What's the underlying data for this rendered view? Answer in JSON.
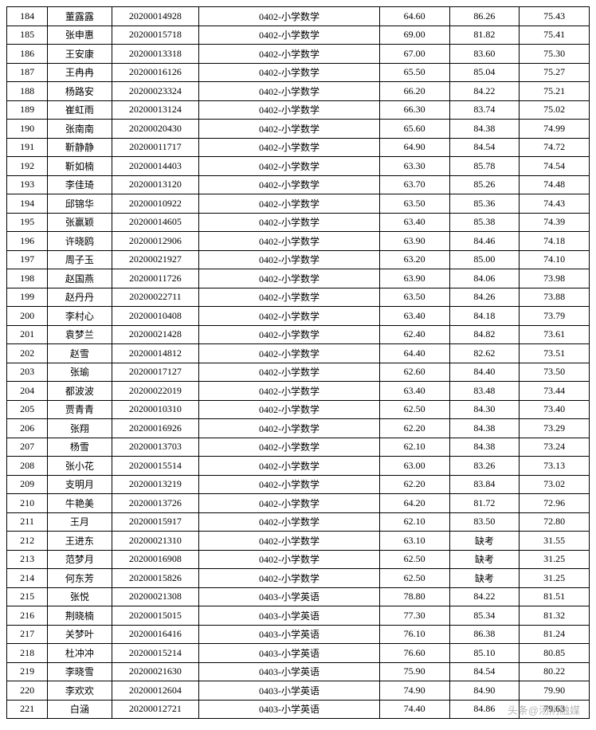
{
  "table": {
    "columns": [
      "index",
      "name",
      "id",
      "subject",
      "score1",
      "score2",
      "score3"
    ],
    "column_classes": [
      "col-index",
      "col-name",
      "col-id",
      "col-subject",
      "col-score1",
      "col-score2",
      "col-score3"
    ],
    "border_color": "#000000",
    "background_color": "#ffffff",
    "text_color": "#000000",
    "font_size": 12,
    "row_height": 23.5,
    "rows": [
      [
        "184",
        "董露露",
        "20200014928",
        "0402-小学数学",
        "64.60",
        "86.26",
        "75.43"
      ],
      [
        "185",
        "张申惠",
        "20200015718",
        "0402-小学数学",
        "69.00",
        "81.82",
        "75.41"
      ],
      [
        "186",
        "王安康",
        "20200013318",
        "0402-小学数学",
        "67.00",
        "83.60",
        "75.30"
      ],
      [
        "187",
        "王冉冉",
        "20200016126",
        "0402-小学数学",
        "65.50",
        "85.04",
        "75.27"
      ],
      [
        "188",
        "杨路安",
        "20200023324",
        "0402-小学数学",
        "66.20",
        "84.22",
        "75.21"
      ],
      [
        "189",
        "崔虹雨",
        "20200013124",
        "0402-小学数学",
        "66.30",
        "83.74",
        "75.02"
      ],
      [
        "190",
        "张南南",
        "20200020430",
        "0402-小学数学",
        "65.60",
        "84.38",
        "74.99"
      ],
      [
        "191",
        "靳静静",
        "20200011717",
        "0402-小学数学",
        "64.90",
        "84.54",
        "74.72"
      ],
      [
        "192",
        "靳如楠",
        "20200014403",
        "0402-小学数学",
        "63.30",
        "85.78",
        "74.54"
      ],
      [
        "193",
        "李佳琦",
        "20200013120",
        "0402-小学数学",
        "63.70",
        "85.26",
        "74.48"
      ],
      [
        "194",
        "邱锦华",
        "20200010922",
        "0402-小学数学",
        "63.50",
        "85.36",
        "74.43"
      ],
      [
        "195",
        "张赢颖",
        "20200014605",
        "0402-小学数学",
        "63.40",
        "85.38",
        "74.39"
      ],
      [
        "196",
        "许晓鸥",
        "20200012906",
        "0402-小学数学",
        "63.90",
        "84.46",
        "74.18"
      ],
      [
        "197",
        "周子玉",
        "20200021927",
        "0402-小学数学",
        "63.20",
        "85.00",
        "74.10"
      ],
      [
        "198",
        "赵国燕",
        "20200011726",
        "0402-小学数学",
        "63.90",
        "84.06",
        "73.98"
      ],
      [
        "199",
        "赵丹丹",
        "20200022711",
        "0402-小学数学",
        "63.50",
        "84.26",
        "73.88"
      ],
      [
        "200",
        "李村心",
        "20200010408",
        "0402-小学数学",
        "63.40",
        "84.18",
        "73.79"
      ],
      [
        "201",
        "袁梦兰",
        "20200021428",
        "0402-小学数学",
        "62.40",
        "84.82",
        "73.61"
      ],
      [
        "202",
        "赵雪",
        "20200014812",
        "0402-小学数学",
        "64.40",
        "82.62",
        "73.51"
      ],
      [
        "203",
        "张瑜",
        "20200017127",
        "0402-小学数学",
        "62.60",
        "84.40",
        "73.50"
      ],
      [
        "204",
        "都波波",
        "20200022019",
        "0402-小学数学",
        "63.40",
        "83.48",
        "73.44"
      ],
      [
        "205",
        "贾青青",
        "20200010310",
        "0402-小学数学",
        "62.50",
        "84.30",
        "73.40"
      ],
      [
        "206",
        "张翔",
        "20200016926",
        "0402-小学数学",
        "62.20",
        "84.38",
        "73.29"
      ],
      [
        "207",
        "杨雪",
        "20200013703",
        "0402-小学数学",
        "62.10",
        "84.38",
        "73.24"
      ],
      [
        "208",
        "张小花",
        "20200015514",
        "0402-小学数学",
        "63.00",
        "83.26",
        "73.13"
      ],
      [
        "209",
        "支明月",
        "20200013219",
        "0402-小学数学",
        "62.20",
        "83.84",
        "73.02"
      ],
      [
        "210",
        "牛艳美",
        "20200013726",
        "0402-小学数学",
        "64.20",
        "81.72",
        "72.96"
      ],
      [
        "211",
        "王月",
        "20200015917",
        "0402-小学数学",
        "62.10",
        "83.50",
        "72.80"
      ],
      [
        "212",
        "王进东",
        "20200021310",
        "0402-小学数学",
        "63.10",
        "缺考",
        "31.55"
      ],
      [
        "213",
        "范梦月",
        "20200016908",
        "0402-小学数学",
        "62.50",
        "缺考",
        "31.25"
      ],
      [
        "214",
        "何东芳",
        "20200015826",
        "0402-小学数学",
        "62.50",
        "缺考",
        "31.25"
      ],
      [
        "215",
        "张悦",
        "20200021308",
        "0403-小学英语",
        "78.80",
        "84.22",
        "81.51"
      ],
      [
        "216",
        "荆晓楠",
        "20200015015",
        "0403-小学英语",
        "77.30",
        "85.34",
        "81.32"
      ],
      [
        "217",
        "关梦叶",
        "20200016416",
        "0403-小学英语",
        "76.10",
        "86.38",
        "81.24"
      ],
      [
        "218",
        "杜冲冲",
        "20200015214",
        "0403-小学英语",
        "76.60",
        "85.10",
        "80.85"
      ],
      [
        "219",
        "李晓雪",
        "20200021630",
        "0403-小学英语",
        "75.90",
        "84.54",
        "80.22"
      ],
      [
        "220",
        "李欢欢",
        "20200012604",
        "0403-小学英语",
        "74.90",
        "84.90",
        "79.90"
      ],
      [
        "221",
        "白涵",
        "20200012721",
        "0403-小学英语",
        "74.40",
        "84.86",
        "79.63"
      ]
    ]
  },
  "watermark": {
    "text": "头条@汤阴融媒",
    "color": "rgba(120,120,120,0.55)",
    "font_size": 13
  }
}
